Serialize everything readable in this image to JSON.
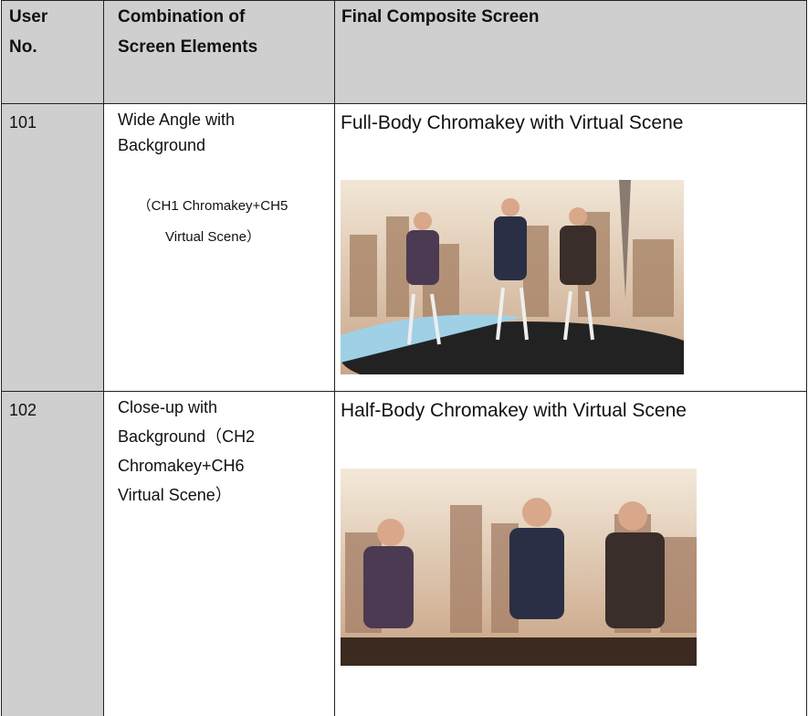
{
  "table": {
    "header": {
      "user_no": [
        "User",
        "No."
      ],
      "combination": [
        "Combination of",
        "Screen Elements"
      ],
      "final": "Final Composite Screen"
    },
    "rows": [
      {
        "user_no": "101",
        "combination": "Wide Angle with Background",
        "combination_note": [
          "（CH1 Chromakey+CH5",
          "Virtual Scene）"
        ],
        "final_title": "Full-Body Chromakey with Virtual Scene"
      },
      {
        "user_no": "102",
        "combination": [
          "Close-up with",
          "Background（CH2",
          "Chromakey+CH6",
          "Virtual Scene）"
        ],
        "final_title": "Half-Body Chromakey with Virtual Scene"
      }
    ]
  }
}
